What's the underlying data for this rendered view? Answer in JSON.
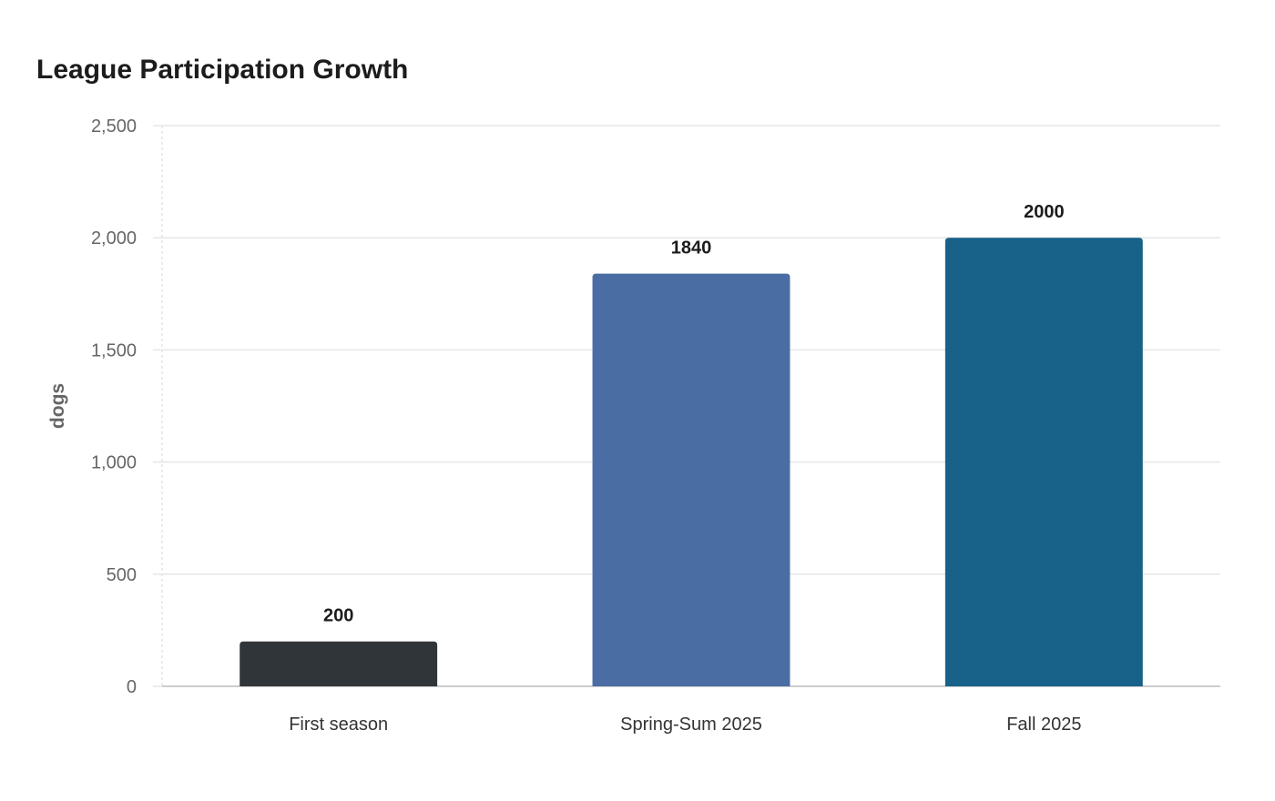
{
  "chart_data": {
    "type": "bar",
    "title": "League Participation Growth",
    "xlabel": "",
    "ylabel": "dogs",
    "categories": [
      "First season",
      "Spring-Sum 2025",
      "Fall 2025"
    ],
    "values": [
      200,
      1840,
      2000
    ],
    "data_labels": [
      "200",
      "1840",
      "2000"
    ],
    "ylim": [
      0,
      2500
    ],
    "yticks": [
      0,
      500,
      1000,
      1500,
      2000,
      2500
    ],
    "ytick_labels": [
      "0",
      "500",
      "1,000",
      "1,500",
      "2,000",
      "2,500"
    ],
    "bar_colors": [
      "#2f3538",
      "#4a6ea3",
      "#186189"
    ],
    "grid": true,
    "legend": "none"
  }
}
